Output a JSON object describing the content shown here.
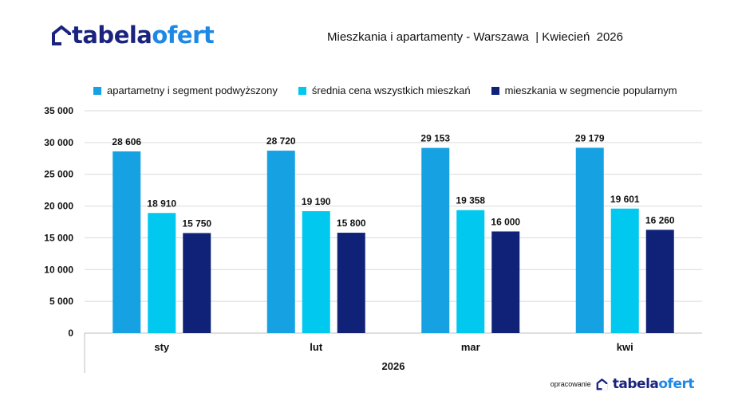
{
  "logo": {
    "part1": "tabela",
    "part2": "ofert"
  },
  "header": {
    "title": "Mieszkania i apartamenty - Warszawa  | Kwiecień  2026"
  },
  "footer": {
    "note": "opracowanie"
  },
  "colors": {
    "brand_dark": "#1a237e",
    "brand_blue": "#1e88e5",
    "grid": "#d9d9d9"
  },
  "chart_data": {
    "type": "bar",
    "title": "Mieszkania i apartamenty - Warszawa  | Kwiecień  2026",
    "categories": [
      "sty",
      "lut",
      "mar",
      "kwi"
    ],
    "x_group_label": "2026",
    "xlabel": "",
    "ylabel": "",
    "ylim": [
      0,
      35000
    ],
    "yticks": [
      0,
      5000,
      10000,
      15000,
      20000,
      25000,
      30000,
      35000
    ],
    "ytick_labels": [
      "0",
      "5 000",
      "10 000",
      "15 000",
      "20 000",
      "25 000",
      "30 000",
      "35 000"
    ],
    "grid": true,
    "legend_position": "top",
    "series": [
      {
        "name": "apartametny i segment podwyższony",
        "color": "#16a1e3",
        "values": [
          28606,
          28720,
          29153,
          29179
        ],
        "labels": [
          "28 606",
          "28 720",
          "29 153",
          "29 179"
        ]
      },
      {
        "name": "średnia cena wszystkich mieszkań",
        "color": "#00c8ee",
        "values": [
          18910,
          19190,
          19358,
          19601
        ],
        "labels": [
          "18 910",
          "19 190",
          "19 358",
          "19 601"
        ]
      },
      {
        "name": "mieszkania w segmencie popularnym",
        "color": "#0f2278",
        "values": [
          15750,
          15800,
          16000,
          16260
        ],
        "labels": [
          "15 750",
          "15 800",
          "16 000",
          "16 260"
        ]
      }
    ]
  }
}
